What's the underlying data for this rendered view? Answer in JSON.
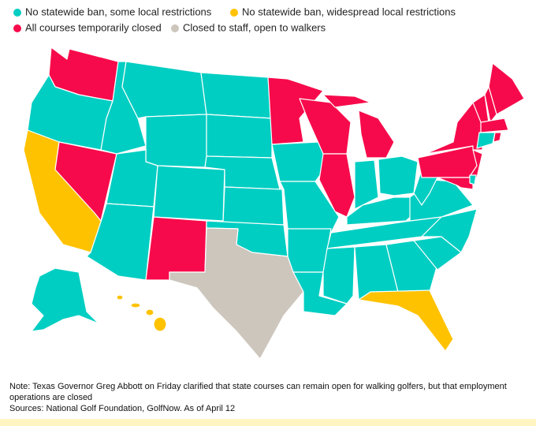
{
  "legend": {
    "items": [
      {
        "name": "No statewide ban, some local restrictions",
        "color": "#00cec2"
      },
      {
        "name": "No statewide ban, widespread local restrictions",
        "color": "#ffc200"
      },
      {
        "name": "All courses temporarily closed",
        "color": "#f70a4b"
      },
      {
        "name": "Closed to staff, open to walkers",
        "color": "#ccc6bd"
      }
    ]
  },
  "footer": {
    "note": "Note: Texas Governor Greg Abbott on Friday clarified that state courses can remain open for walking golfers, but that employment operations are closed",
    "sources": "Sources: National Golf Foundation, GolfNow. As of April 12"
  }
}
